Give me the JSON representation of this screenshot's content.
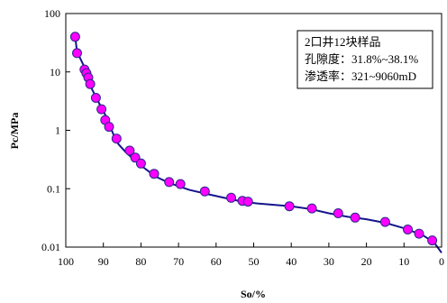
{
  "chart_data": {
    "type": "line",
    "title": "",
    "xlabel": "So/%",
    "ylabel": "Pc/MPa",
    "x_reversed": true,
    "xlim": [
      100,
      0
    ],
    "ylim": [
      0.01,
      100
    ],
    "y_scale": "log",
    "x_ticks": [
      "100",
      "90",
      "80",
      "70",
      "60",
      "50",
      "40",
      "30",
      "20",
      "10",
      "0"
    ],
    "y_ticks": [
      "100",
      "10",
      "1",
      "0.1",
      "0.01"
    ],
    "grid": false,
    "legend_position": "top-right",
    "legend_lines": [
      "2口井12块样品",
      "孔隙度：31.8%~38.1%",
      "渗透率：321~9060mD"
    ],
    "colors": {
      "line": "#14148c",
      "marker_fill": "#ff00ff",
      "marker_edge": "#2a2a88"
    },
    "curve": {
      "x": [
        97.5,
        97,
        95,
        94,
        93,
        91,
        89,
        88,
        87,
        86,
        84,
        82,
        80,
        78,
        76,
        73,
        70,
        67,
        62,
        57,
        53,
        49,
        40,
        35,
        30,
        25,
        20,
        15,
        10,
        5,
        2,
        0
      ],
      "y": [
        40,
        22,
        12,
        8,
        5,
        2.8,
        1.6,
        1.1,
        0.75,
        0.58,
        0.42,
        0.32,
        0.25,
        0.2,
        0.16,
        0.13,
        0.11,
        0.095,
        0.08,
        0.068,
        0.06,
        0.056,
        0.05,
        0.045,
        0.038,
        0.033,
        0.03,
        0.026,
        0.021,
        0.016,
        0.012,
        0.008
      ]
    },
    "series": [
      {
        "name": "",
        "x": [
          97.5,
          97,
          95,
          94.5,
          94,
          93.5,
          92,
          90.5,
          89.5,
          88.5,
          86.5,
          83,
          81.5,
          80,
          76.5,
          72.5,
          69.5,
          63,
          56,
          53,
          51.5,
          40.5,
          34.5,
          27.5,
          23,
          15,
          9,
          6,
          2.5
        ],
        "y": [
          40,
          21,
          11,
          9.5,
          8,
          6.2,
          3.6,
          2.3,
          1.5,
          1.15,
          0.72,
          0.45,
          0.34,
          0.27,
          0.18,
          0.13,
          0.12,
          0.09,
          0.07,
          0.062,
          0.06,
          0.05,
          0.046,
          0.038,
          0.032,
          0.027,
          0.02,
          0.017,
          0.013
        ]
      }
    ]
  }
}
